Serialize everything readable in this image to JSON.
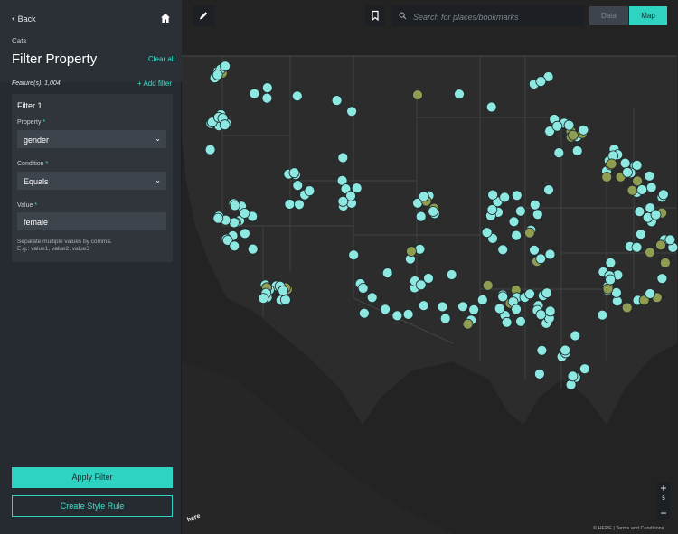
{
  "sidebar": {
    "back_label": "Back",
    "layer_name": "Cats",
    "title": "Filter Property",
    "clear_all_label": "Clear all",
    "features_label": "Feature(s): 1,004",
    "add_filter_label": "+ Add filter",
    "filter": {
      "title": "Filter 1",
      "property_label": "Property",
      "property_value": "gender",
      "condition_label": "Condition",
      "condition_value": "Equals",
      "value_label": "Value",
      "value_value": "female",
      "hint_line1": "Separate multiple values by comma.",
      "hint_line2": "E.g.: value1, value2, value3"
    },
    "apply_label": "Apply Filter",
    "style_rule_label": "Create Style Rule"
  },
  "map": {
    "search_placeholder": "Search for places/bookmarks",
    "toggle_data_label": "Data",
    "toggle_map_label": "Map",
    "zoom_in_label": "+",
    "zoom_out_label": "−",
    "zoom_level": "5",
    "logo_text": "here",
    "attribution": "© HERE | Terms and Conditions",
    "colors": {
      "point_match": "#8ee8e2",
      "point_other": "#8f9d52",
      "land": "#2c2c2c",
      "border": "#555555",
      "accent": "#2fd3c1"
    }
  }
}
